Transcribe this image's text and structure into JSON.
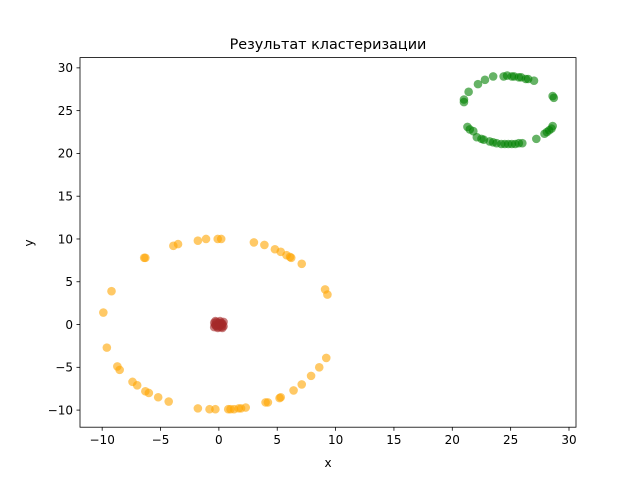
{
  "chart_data": {
    "type": "scatter",
    "title": "Результат кластеризации",
    "xlabel": "x",
    "ylabel": "y",
    "xlim": [
      -11.9,
      30.6
    ],
    "ylim": [
      -12,
      31.2
    ],
    "xticks": [
      -10,
      -5,
      0,
      5,
      10,
      15,
      20,
      25,
      30
    ],
    "yticks": [
      -10,
      -5,
      0,
      5,
      10,
      15,
      20,
      25,
      30
    ],
    "grid": false,
    "series": [
      {
        "color": "#ffa500",
        "alpha": 0.6,
        "points": [
          [
            -1.8,
            9.8
          ],
          [
            -1.1,
            10.0
          ],
          [
            -0.1,
            10.0
          ],
          [
            0.2,
            10.0
          ],
          [
            -3.9,
            9.2
          ],
          [
            -3.5,
            9.4
          ],
          [
            3.0,
            9.6
          ],
          [
            3.9,
            9.3
          ],
          [
            4.8,
            8.8
          ],
          [
            5.3,
            8.5
          ],
          [
            5.8,
            8.1
          ],
          [
            6.1,
            7.9
          ],
          [
            6.2,
            7.8
          ],
          [
            7.1,
            7.1
          ],
          [
            -6.4,
            7.8
          ],
          [
            -6.3,
            7.8
          ],
          [
            -9.2,
            3.9
          ],
          [
            -9.9,
            1.4
          ],
          [
            9.1,
            4.1
          ],
          [
            9.3,
            3.5
          ],
          [
            -9.6,
            -2.7
          ],
          [
            9.2,
            -3.9
          ],
          [
            -8.7,
            -4.9
          ],
          [
            -8.5,
            -5.3
          ],
          [
            8.6,
            -5.0
          ],
          [
            7.9,
            -6.0
          ],
          [
            -7.4,
            -6.7
          ],
          [
            -7.0,
            -7.1
          ],
          [
            7.1,
            -7.0
          ],
          [
            6.4,
            -7.7
          ],
          [
            -6.3,
            -7.8
          ],
          [
            -6.0,
            -8.0
          ],
          [
            5.3,
            -8.5
          ],
          [
            5.2,
            -8.6
          ],
          [
            -5.2,
            -8.5
          ],
          [
            -4.3,
            -9.0
          ],
          [
            4.2,
            -9.1
          ],
          [
            4.0,
            -9.1
          ],
          [
            -1.8,
            -9.8
          ],
          [
            -0.8,
            -9.9
          ],
          [
            -0.3,
            -9.9
          ],
          [
            0.8,
            -9.9
          ],
          [
            1.0,
            -9.9
          ],
          [
            1.3,
            -9.9
          ],
          [
            1.7,
            -9.8
          ],
          [
            1.9,
            -9.8
          ],
          [
            2.3,
            -9.7
          ]
        ]
      },
      {
        "color": "#a52a2a",
        "alpha": 0.6,
        "points": [
          [
            0.0,
            0.0
          ],
          [
            0.3,
            0.1
          ],
          [
            -0.3,
            -0.1
          ],
          [
            0.1,
            0.4
          ],
          [
            -0.1,
            -0.4
          ],
          [
            0.4,
            -0.2
          ],
          [
            -0.4,
            0.2
          ],
          [
            0.2,
            -0.3
          ],
          [
            -0.2,
            0.3
          ],
          [
            0.0,
            0.2
          ],
          [
            0.2,
            0.2
          ],
          [
            -0.2,
            -0.2
          ],
          [
            0.3,
            -0.4
          ],
          [
            -0.3,
            0.4
          ],
          [
            0.1,
            -0.1
          ],
          [
            0.4,
            0.3
          ],
          [
            -0.4,
            -0.3
          ],
          [
            0.0,
            -0.3
          ],
          [
            0.3,
            0.0
          ],
          [
            -0.3,
            0.0
          ]
        ]
      },
      {
        "color": "#008000",
        "alpha": 0.6,
        "points": [
          [
            23.5,
            29.0
          ],
          [
            24.4,
            29.0
          ],
          [
            24.7,
            29.1
          ],
          [
            25.1,
            29.0
          ],
          [
            25.3,
            29.0
          ],
          [
            25.7,
            28.9
          ],
          [
            25.9,
            28.9
          ],
          [
            26.3,
            28.7
          ],
          [
            26.5,
            28.7
          ],
          [
            27.0,
            28.5
          ],
          [
            22.8,
            28.6
          ],
          [
            22.2,
            28.1
          ],
          [
            21.4,
            27.2
          ],
          [
            21.0,
            26.3
          ],
          [
            21.0,
            26.0
          ],
          [
            28.6,
            26.7
          ],
          [
            28.7,
            26.5
          ],
          [
            21.3,
            23.1
          ],
          [
            21.5,
            22.8
          ],
          [
            21.8,
            22.6
          ],
          [
            28.6,
            23.2
          ],
          [
            28.5,
            22.9
          ],
          [
            28.3,
            22.7
          ],
          [
            28.1,
            22.5
          ],
          [
            27.9,
            22.3
          ],
          [
            22.1,
            21.9
          ],
          [
            22.5,
            21.7
          ],
          [
            22.7,
            21.6
          ],
          [
            27.2,
            21.7
          ],
          [
            23.2,
            21.4
          ],
          [
            23.5,
            21.3
          ],
          [
            23.8,
            21.2
          ],
          [
            24.2,
            21.1
          ],
          [
            24.5,
            21.1
          ],
          [
            24.8,
            21.1
          ],
          [
            25.1,
            21.1
          ],
          [
            25.4,
            21.1
          ],
          [
            25.7,
            21.2
          ],
          [
            26.0,
            21.2
          ]
        ]
      }
    ]
  }
}
